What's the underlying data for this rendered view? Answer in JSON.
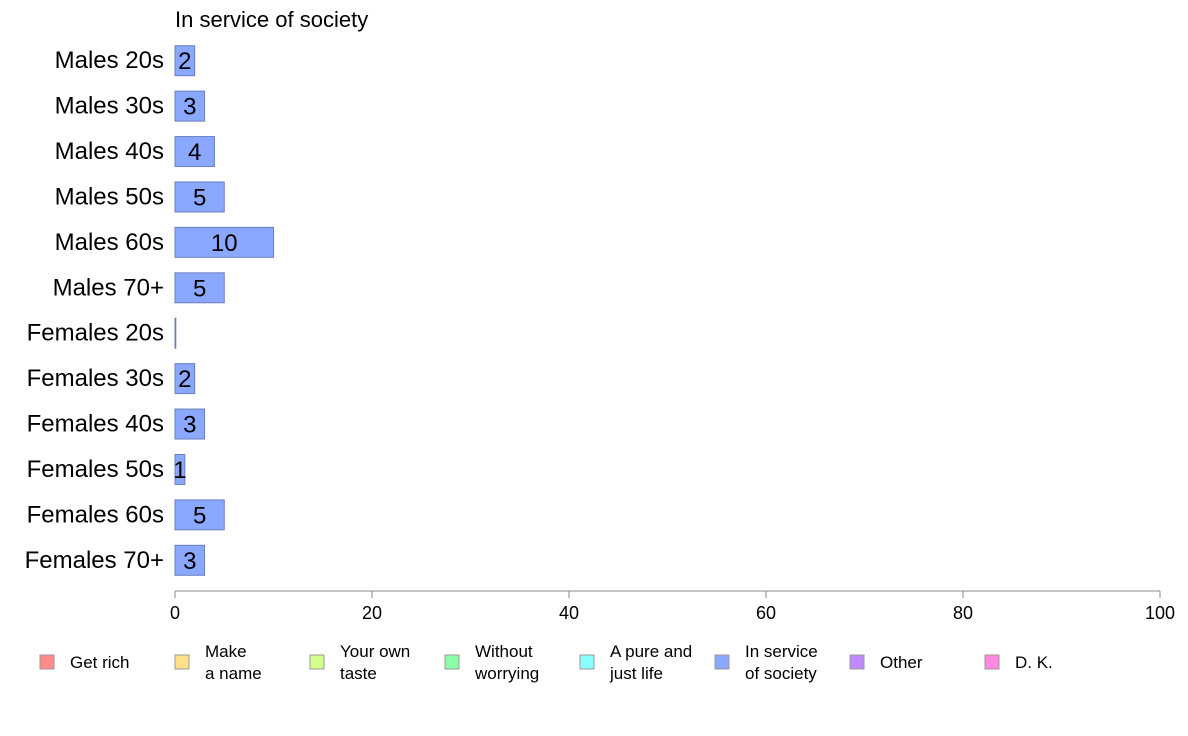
{
  "chart_data": {
    "type": "bar",
    "orientation": "horizontal",
    "title": "In service of society",
    "categories": [
      "Males 20s",
      "Males 30s",
      "Males 40s",
      "Males 50s",
      "Males 60s",
      "Males 70+",
      "Females 20s",
      "Females 30s",
      "Females 40s",
      "Females 50s",
      "Females 60s",
      "Females 70+"
    ],
    "values": [
      2,
      3,
      4,
      5,
      10,
      5,
      0,
      2,
      3,
      1,
      5,
      3
    ],
    "data_labels": [
      "2",
      "3",
      "4",
      "5",
      "10",
      "5",
      "",
      "2",
      "3",
      "1",
      "5",
      "3"
    ],
    "xlim": [
      0,
      100
    ],
    "x_ticks": [
      0,
      20,
      40,
      60,
      80,
      100
    ],
    "grid": false,
    "bar_color": "#8aa8ff",
    "bar_border": "#6a7fc0",
    "legend_position": "bottom",
    "legend": [
      {
        "label": "Get rich",
        "color": "#ff8a8a"
      },
      {
        "label": "Make\na name",
        "color": "#ffe08a"
      },
      {
        "label": "Your own\ntaste",
        "color": "#d4ff8a"
      },
      {
        "label": "Without\nworrying",
        "color": "#8affa8"
      },
      {
        "label": "A pure and\njust life",
        "color": "#8affff"
      },
      {
        "label": "In service\nof society",
        "color": "#8aa8ff"
      },
      {
        "label": "Other",
        "color": "#c08aff"
      },
      {
        "label": "D. K.",
        "color": "#ff8ae0"
      }
    ]
  }
}
